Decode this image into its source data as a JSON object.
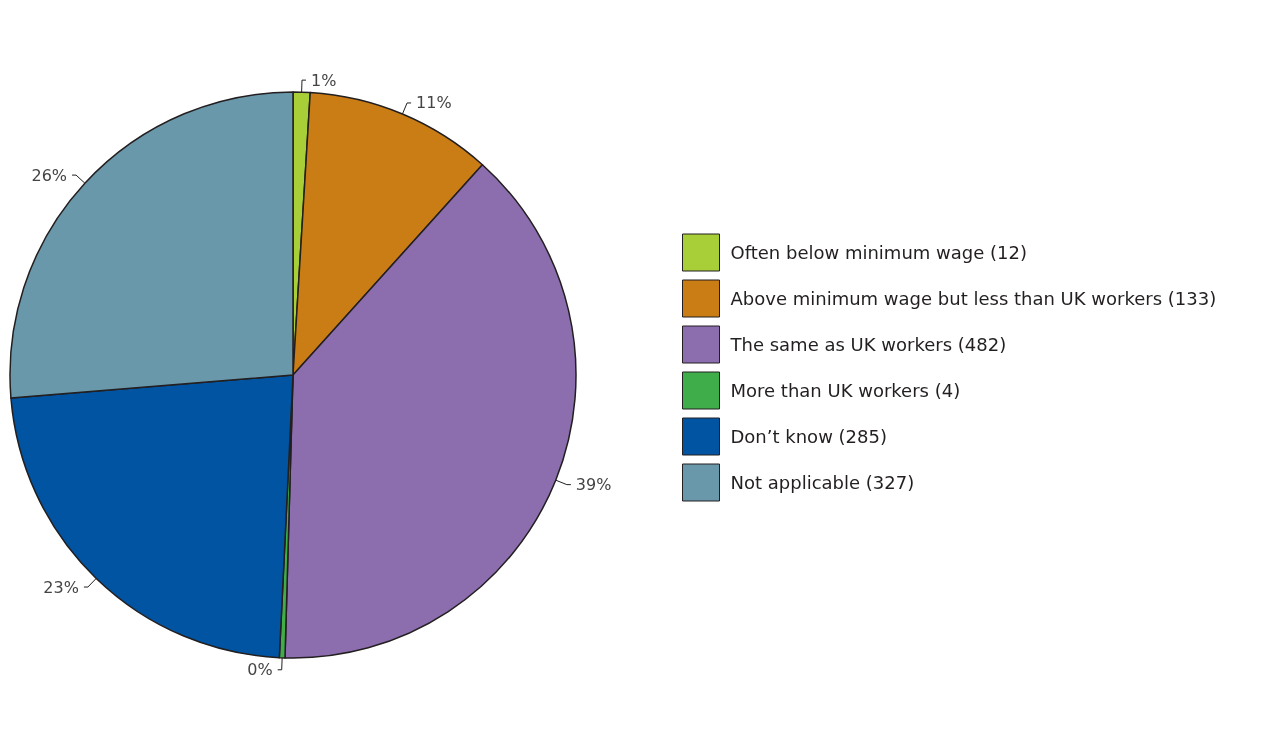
{
  "chart_data": {
    "type": "pie",
    "categories": [
      "Often below minimum wage (12)",
      "Above minimum wage but less than UK workers (133)",
      "The same as UK workers (482)",
      "More than UK workers (4)",
      "Don’t know (285)",
      "Not applicable (327)"
    ],
    "values": [
      0.97,
      10.7,
      38.78,
      0.32,
      22.93,
      26.3
    ],
    "value_labels": [
      "1%",
      "11%",
      "39%",
      "0%",
      "23%",
      "26%"
    ],
    "colors": [
      "#a8cf38",
      "#cb7d15",
      "#8c6eae",
      "#3fad49",
      "#0054a2",
      "#6a98ab"
    ],
    "legend": "right"
  }
}
